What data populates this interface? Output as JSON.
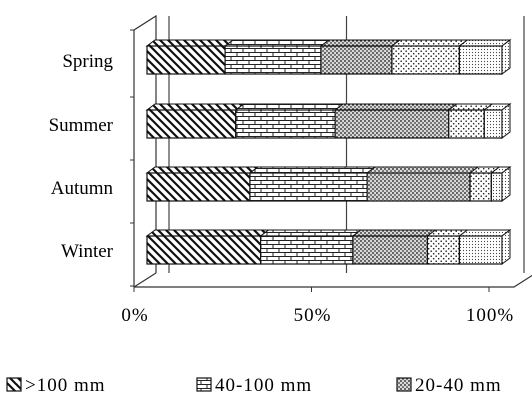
{
  "chart_data": {
    "type": "bar",
    "stacked": true,
    "orientation": "horizontal",
    "percent_stacked": true,
    "three_d": true,
    "categories": [
      "Spring",
      "Summer",
      "Autumn",
      "Winter"
    ],
    "series": [
      {
        "name": ">100 mm",
        "pattern": "diagonal-lines",
        "values": [
          22,
          25,
          29,
          32
        ]
      },
      {
        "name": "40-100 mm",
        "pattern": "brick",
        "values": [
          27,
          28,
          33,
          26
        ]
      },
      {
        "name": "20-40 mm",
        "pattern": "dense-dots",
        "values": [
          20,
          32,
          29,
          21
        ]
      },
      {
        "name": "",
        "pattern": "sparse-dots",
        "values": [
          19,
          10,
          6,
          9
        ]
      },
      {
        "name": "",
        "pattern": "fine-dots",
        "values": [
          12,
          5,
          3,
          12
        ]
      }
    ],
    "xticks": [
      "0%",
      "50%",
      "100%"
    ],
    "xlim": [
      0,
      100
    ],
    "grid": "vertical-major",
    "legend_position": "bottom"
  }
}
